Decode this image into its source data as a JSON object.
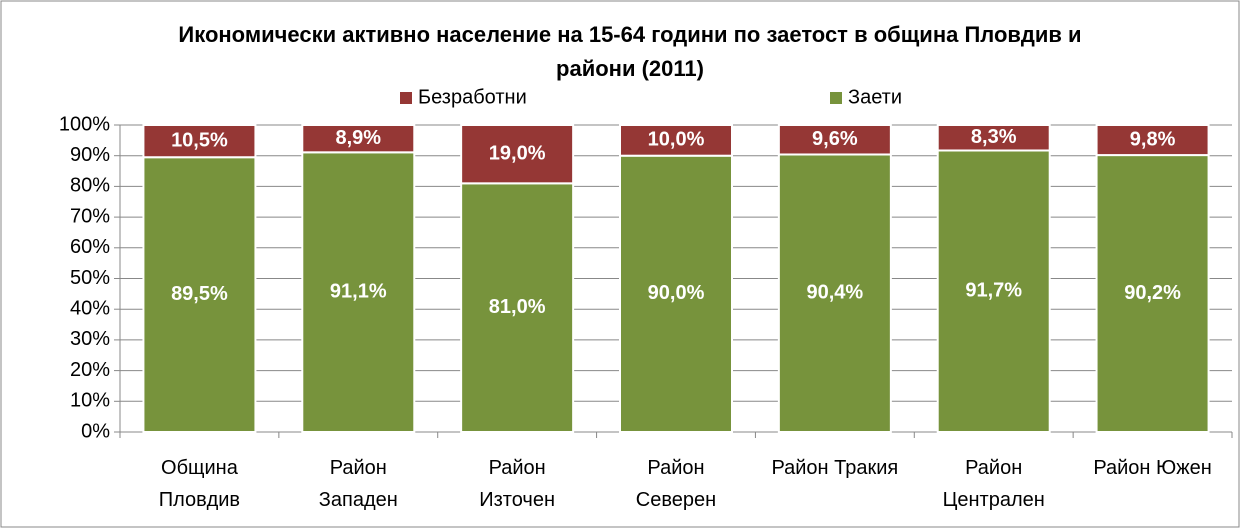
{
  "chart_data": {
    "type": "stacked_bar",
    "title": "Икономически активно население на 15-64 години по заетост в община Пловдив и райони (2011)",
    "categories": [
      "Община Пловдив",
      "Район Западен",
      "Район Източен",
      "Район Северен",
      "Район Тракия",
      "Район Централен",
      "Район Южен"
    ],
    "series": [
      {
        "name": "Заети",
        "color": "#77933c",
        "values": [
          89.5,
          91.1,
          81.0,
          90.0,
          90.4,
          91.7,
          90.2
        ],
        "value_labels": [
          "89,5%",
          "91,1%",
          "81,0%",
          "90,0%",
          "90,4%",
          "91,7%",
          "90,2%"
        ]
      },
      {
        "name": "Безработни",
        "color": "#953735",
        "values": [
          10.5,
          8.9,
          19.0,
          10.0,
          9.6,
          8.3,
          9.8
        ],
        "value_labels": [
          "10,5%",
          "8,9%",
          "19,0%",
          "10,0%",
          "9,6%",
          "8,3%",
          "9,8%"
        ]
      }
    ],
    "ylim": [
      0,
      100
    ],
    "yticks": [
      {
        "value": 0,
        "label": "0%"
      },
      {
        "value": 10,
        "label": "10%"
      },
      {
        "value": 20,
        "label": "20%"
      },
      {
        "value": 30,
        "label": "30%"
      },
      {
        "value": 40,
        "label": "40%"
      },
      {
        "value": 50,
        "label": "50%"
      },
      {
        "value": 60,
        "label": "60%"
      },
      {
        "value": 70,
        "label": "70%"
      },
      {
        "value": 80,
        "label": "80%"
      },
      {
        "value": 90,
        "label": "90%"
      },
      {
        "value": 100,
        "label": "100%"
      }
    ],
    "grid": true,
    "legend": "top"
  }
}
